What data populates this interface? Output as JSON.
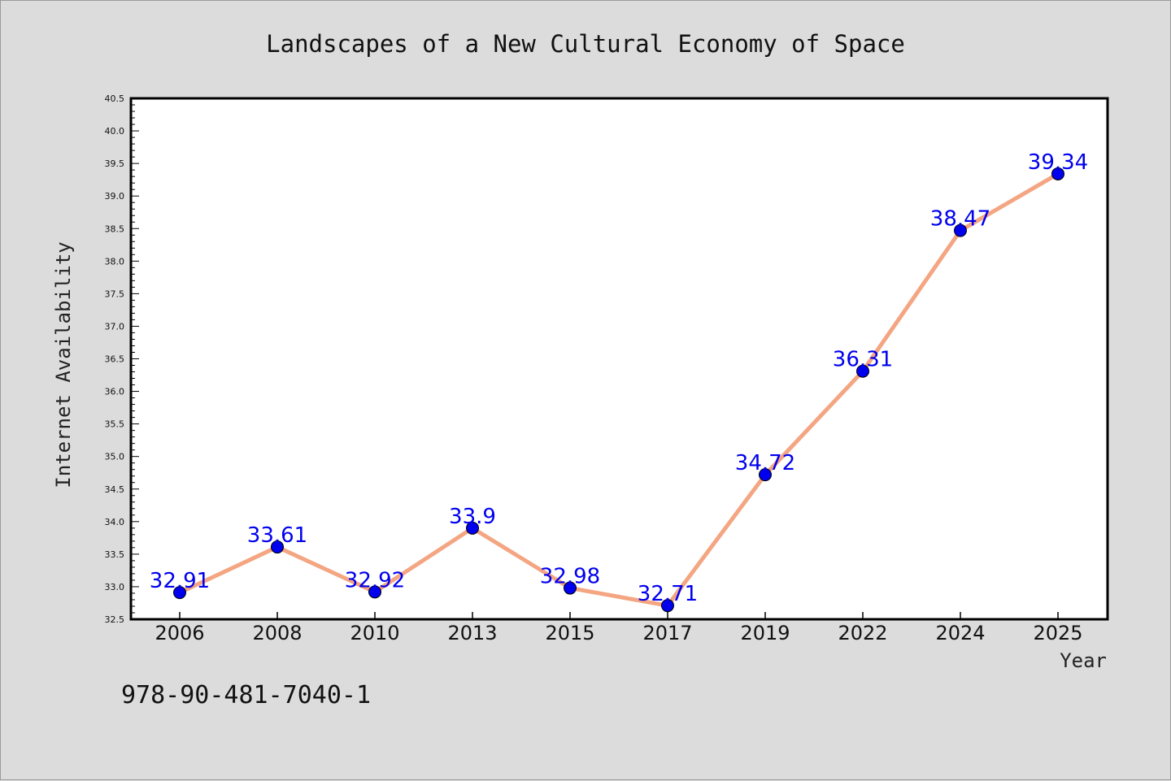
{
  "chart_data": {
    "type": "line",
    "title": "Landscapes of a New Cultural Economy of Space",
    "xlabel": "Year",
    "ylabel": "Internet Availability",
    "categories": [
      "2006",
      "2008",
      "2010",
      "2013",
      "2015",
      "2017",
      "2019",
      "2022",
      "2024",
      "2025"
    ],
    "series": [
      {
        "values": [
          32.91,
          33.61,
          32.92,
          33.9,
          32.98,
          32.71,
          34.72,
          36.31,
          38.47,
          39.34
        ],
        "labels": [
          "32.91",
          "33.61",
          "32.92",
          "33.9",
          "32.98",
          "32.71",
          "34.72",
          "36.31",
          "38.47",
          "39.34"
        ]
      }
    ],
    "ylim": [
      32.5,
      40.5
    ],
    "yticks": [
      "32.5",
      "33.0",
      "33.5",
      "34.0",
      "34.5",
      "35.0",
      "35.5",
      "36.0",
      "36.5",
      "37.0",
      "37.5",
      "38.0",
      "38.5",
      "39.0",
      "39.5",
      "40.0",
      "40.5"
    ],
    "grid": false,
    "legend": "none",
    "colors": {
      "line": "#f4a582",
      "marker": "#0000ee",
      "data_label": "#0000ee",
      "background": "#dcdcdc",
      "plot_area": "#ffffff"
    }
  },
  "footer": {
    "isbn": "978-90-481-7040-1"
  }
}
